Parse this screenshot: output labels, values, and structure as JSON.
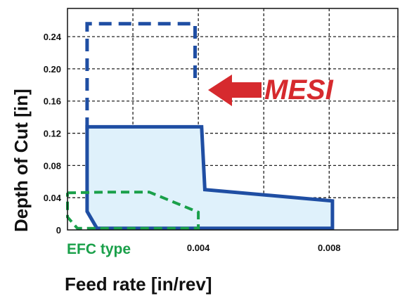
{
  "chart_data": {
    "type": "area",
    "xlabel": "Feed rate [in/rev]",
    "ylabel": "Depth of Cut [in]",
    "xlim": [
      0,
      0.0101
    ],
    "ylim": [
      0,
      0.275
    ],
    "x_ticks": [
      0.002,
      0.004,
      0.006,
      0.008
    ],
    "x_tick_labels": [
      "",
      "0.004",
      "",
      "0.008"
    ],
    "y_ticks": [
      0,
      0.04,
      0.08,
      0.12,
      0.16,
      0.2,
      0.24
    ],
    "y_tick_labels": [
      "0",
      "0.04",
      "0.08",
      "0.12",
      "0.16",
      "0.20",
      "0.24"
    ],
    "grid": true,
    "series": [
      {
        "name": "MESI",
        "style": "dashed",
        "color": "#1f4ea3",
        "points": [
          [
            0.0006,
            0.124
          ],
          [
            0.0006,
            0.256
          ],
          [
            0.0039,
            0.256
          ],
          [
            0.0039,
            0.18
          ]
        ]
      },
      {
        "name": "",
        "style": "solid-filled",
        "color": "#1f4ea3",
        "fill": "#dff1fb",
        "points": [
          [
            0.0006,
            0.128
          ],
          [
            0.0041,
            0.128
          ],
          [
            0.0042,
            0.05
          ],
          [
            0.0081,
            0.036
          ],
          [
            0.0081,
            0.002
          ],
          [
            0.0009,
            0.002
          ],
          [
            0.0006,
            0.023
          ]
        ]
      },
      {
        "name": "EFC type",
        "style": "dashed",
        "color": "#1aa04a",
        "points": [
          [
            0.0,
            0.046
          ],
          [
            0.0012,
            0.047
          ],
          [
            0.0025,
            0.047
          ],
          [
            0.004,
            0.022
          ],
          [
            0.004,
            0.002
          ],
          [
            0.0003,
            0.002
          ],
          [
            0.0,
            0.016
          ],
          [
            0.0,
            0.046
          ]
        ]
      }
    ],
    "annotations": [
      {
        "text": "MESI",
        "color": "#d62a2e"
      },
      {
        "text": "EFC type",
        "color": "#1aa04a"
      }
    ]
  }
}
